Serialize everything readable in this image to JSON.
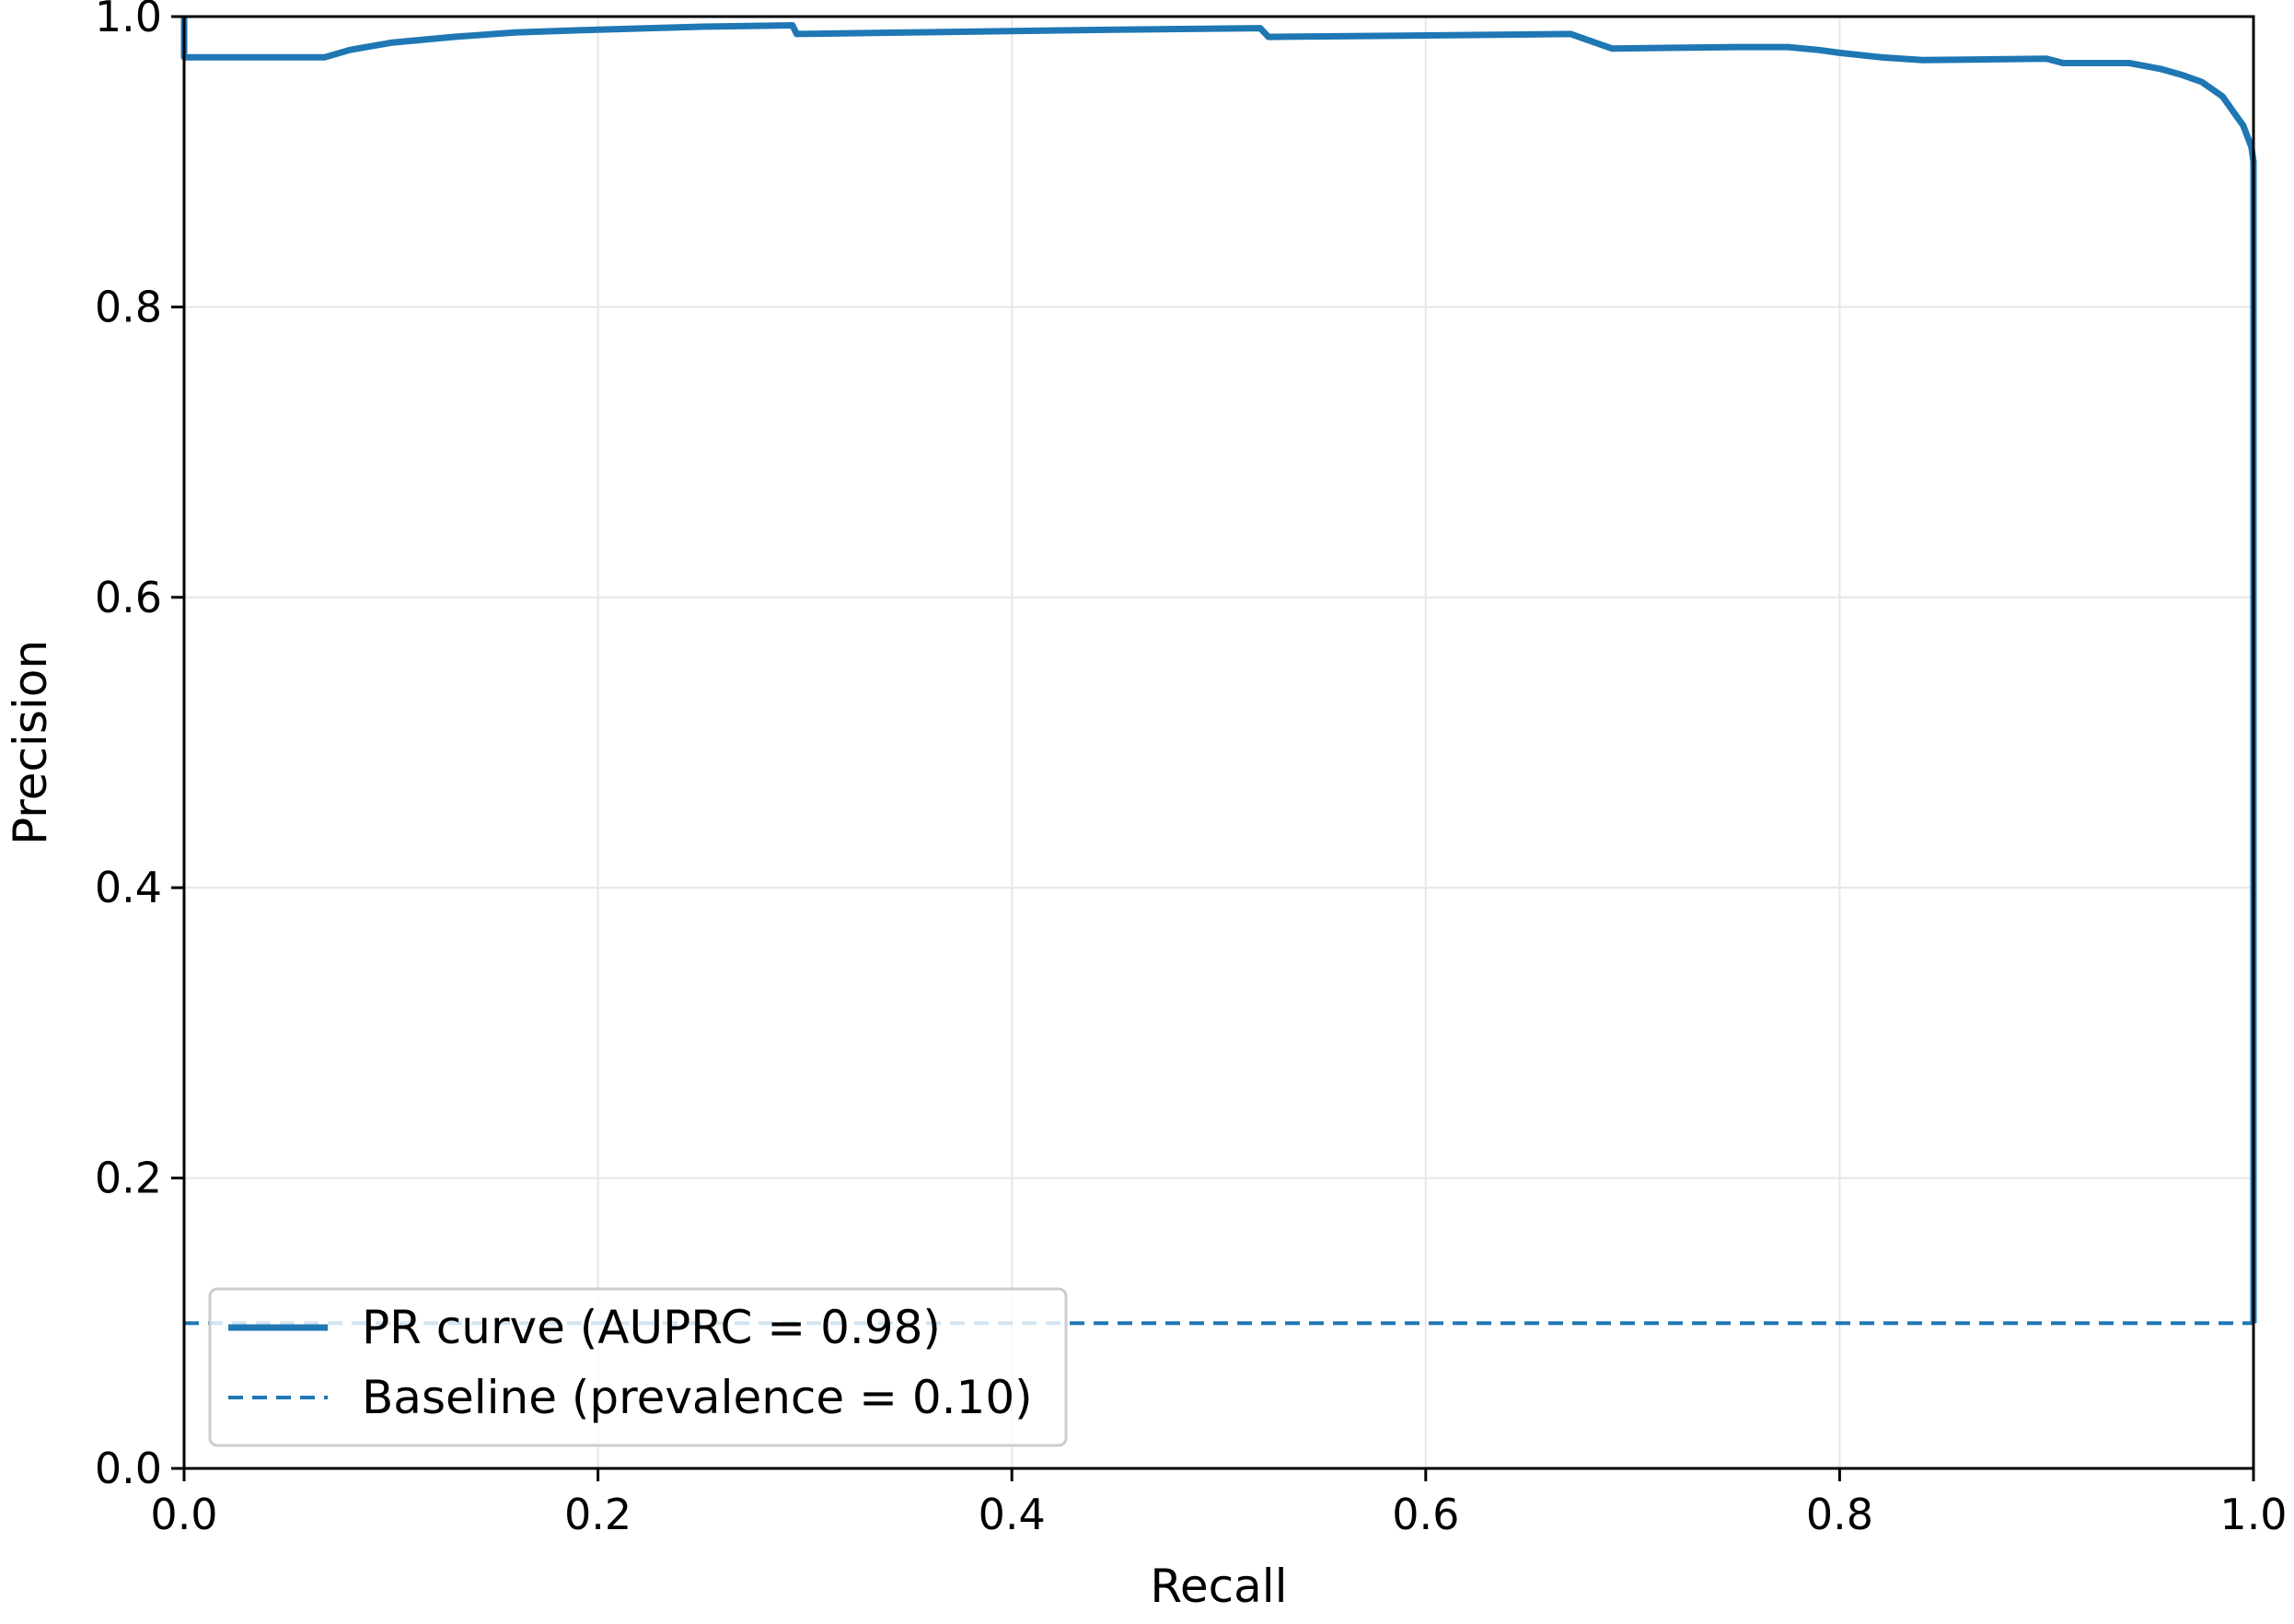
{
  "chart_data": {
    "type": "line",
    "title": "",
    "xlabel": "Recall",
    "ylabel": "Precision",
    "xlim": [
      0.0,
      1.0
    ],
    "ylim": [
      0.0,
      1.0
    ],
    "grid": true,
    "legend_position": "lower-left",
    "x_ticks": [
      "0.0",
      "0.2",
      "0.4",
      "0.6",
      "0.8",
      "1.0"
    ],
    "y_ticks": [
      "0.0",
      "0.2",
      "0.4",
      "0.6",
      "0.8",
      "1.0"
    ],
    "colors": {
      "pr_curve": "#1f77b4",
      "baseline": "#1f77b4",
      "grid": "#e6e6e6",
      "axes": "#000000"
    },
    "series": [
      {
        "name": "PR curve (AUPRC = 0.98)",
        "style": "solid",
        "points": [
          [
            0.0,
            1.0
          ],
          [
            0.0,
            0.972
          ],
          [
            0.068,
            0.972
          ],
          [
            0.08,
            0.977
          ],
          [
            0.1,
            0.982
          ],
          [
            0.13,
            0.986
          ],
          [
            0.16,
            0.989
          ],
          [
            0.2,
            0.991
          ],
          [
            0.25,
            0.993
          ],
          [
            0.294,
            0.994
          ],
          [
            0.296,
            0.988
          ],
          [
            0.35,
            0.989
          ],
          [
            0.4,
            0.99
          ],
          [
            0.45,
            0.991
          ],
          [
            0.52,
            0.992
          ],
          [
            0.524,
            0.986
          ],
          [
            0.6,
            0.987
          ],
          [
            0.67,
            0.988
          ],
          [
            0.68,
            0.983
          ],
          [
            0.69,
            0.978
          ],
          [
            0.75,
            0.979
          ],
          [
            0.775,
            0.979
          ],
          [
            0.79,
            0.977
          ],
          [
            0.8,
            0.975
          ],
          [
            0.82,
            0.972
          ],
          [
            0.84,
            0.97
          ],
          [
            0.9,
            0.971
          ],
          [
            0.908,
            0.968
          ],
          [
            0.94,
            0.968
          ],
          [
            0.955,
            0.964
          ],
          [
            0.965,
            0.96
          ],
          [
            0.975,
            0.955
          ],
          [
            0.985,
            0.945
          ],
          [
            0.99,
            0.935
          ],
          [
            0.995,
            0.925
          ],
          [
            0.999,
            0.91
          ],
          [
            1.0,
            0.9
          ],
          [
            1.0,
            0.1
          ]
        ]
      },
      {
        "name": "Baseline (prevalence = 0.10)",
        "style": "dashed",
        "points": [
          [
            0.0,
            0.1
          ],
          [
            1.0,
            0.1
          ]
        ]
      }
    ]
  }
}
